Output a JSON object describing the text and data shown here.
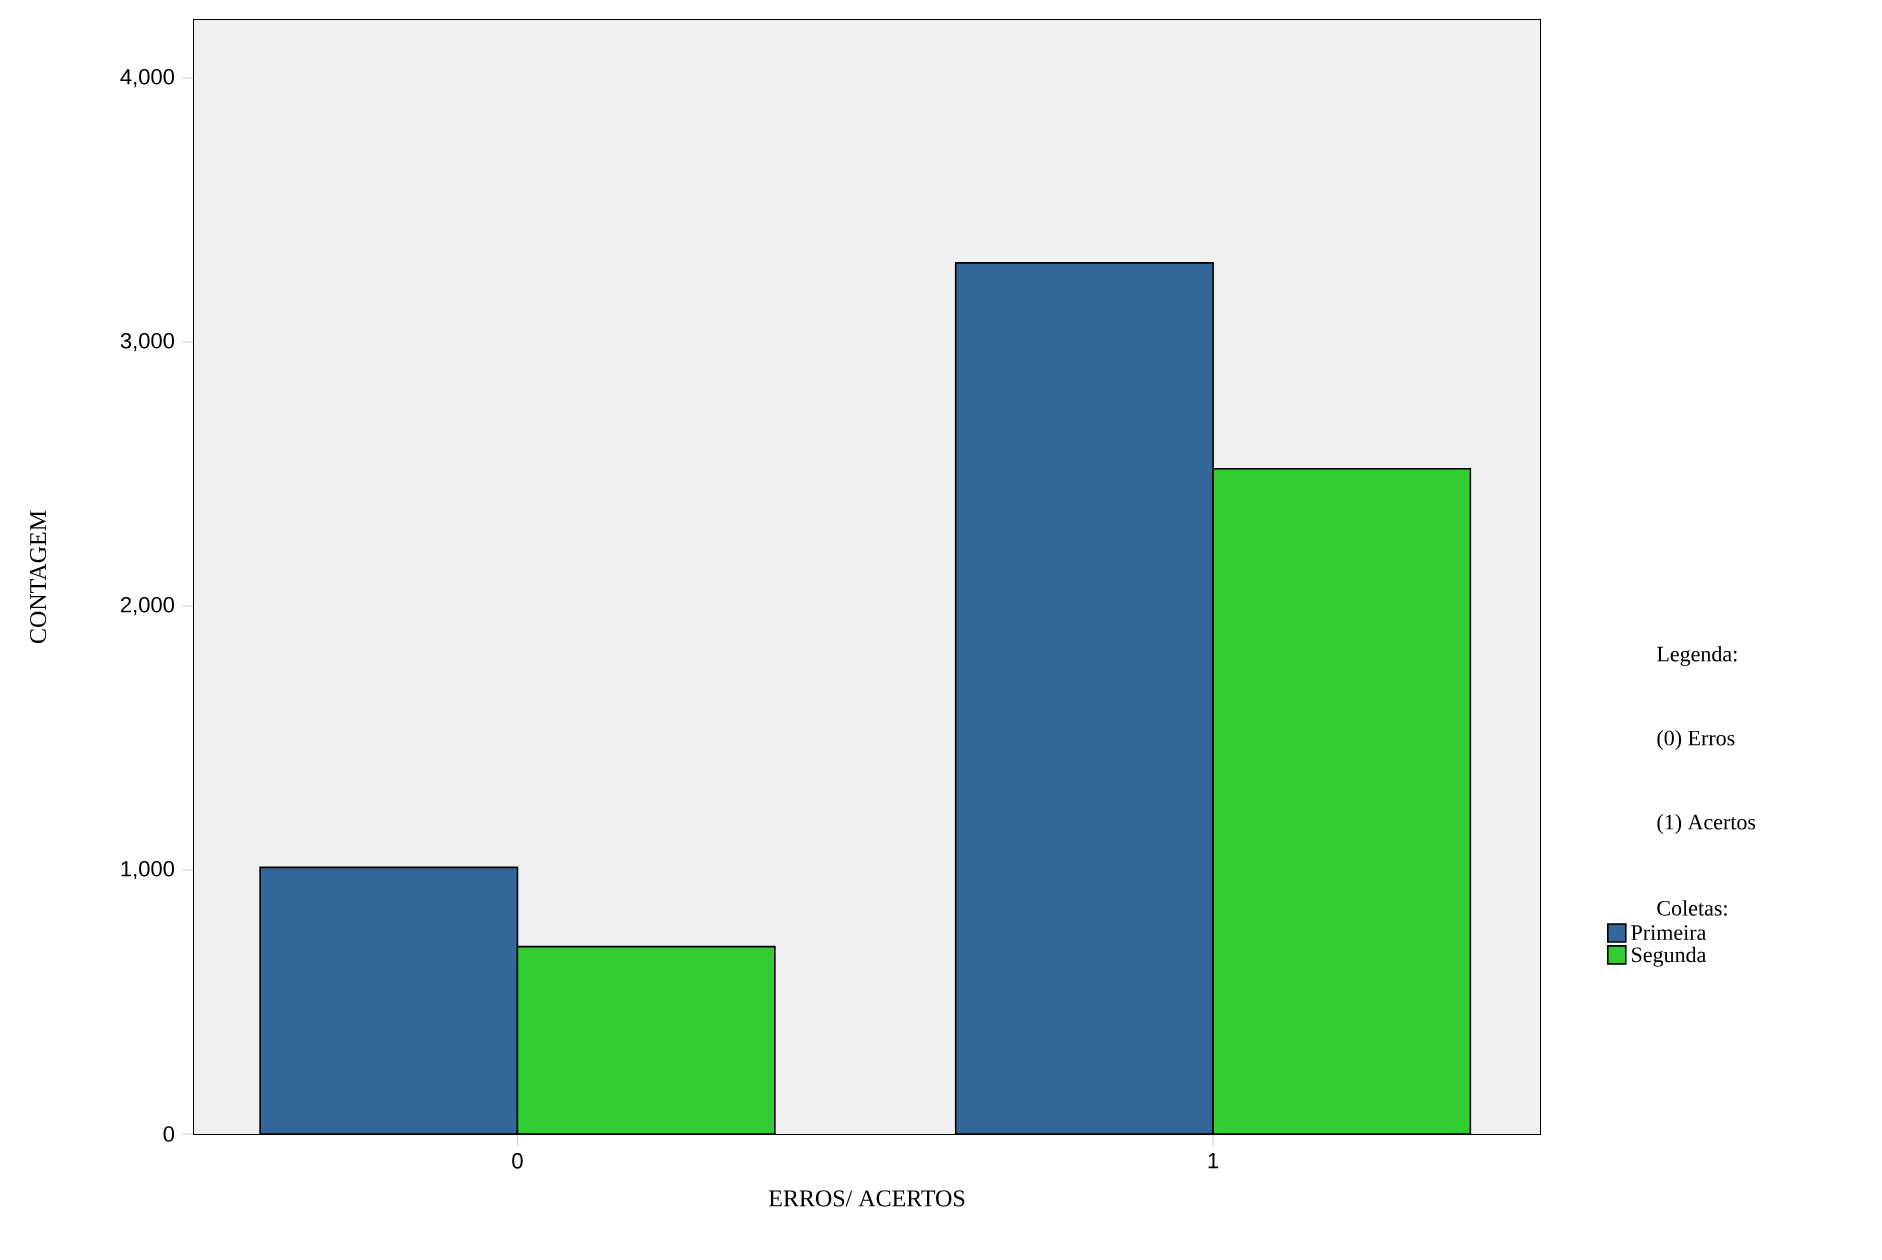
{
  "chart_data": {
    "type": "bar",
    "xlabel": "ERROS/ ACERTOS",
    "ylabel": "CONTAGEM",
    "legend_title": "Coletas:",
    "categories": [
      "0",
      "1"
    ],
    "series": [
      {
        "name": "Primeira",
        "color": "#336699",
        "values": [
          1010,
          3300
        ]
      },
      {
        "name": "Segunda",
        "color": "#33cc33",
        "values": [
          710,
          2520
        ]
      }
    ],
    "ylim": [
      0,
      4220
    ],
    "yticks": [
      0,
      {
        "value": 1000,
        "label": "1,000"
      },
      {
        "value": 2000,
        "label": "2,000"
      },
      {
        "value": 3000,
        "label": "3,000"
      },
      {
        "value": 4000,
        "label": "4,000"
      }
    ],
    "legend": "right",
    "annotations": [
      "Legenda:",
      "(0) Erros",
      "(1) Acertos"
    ]
  }
}
